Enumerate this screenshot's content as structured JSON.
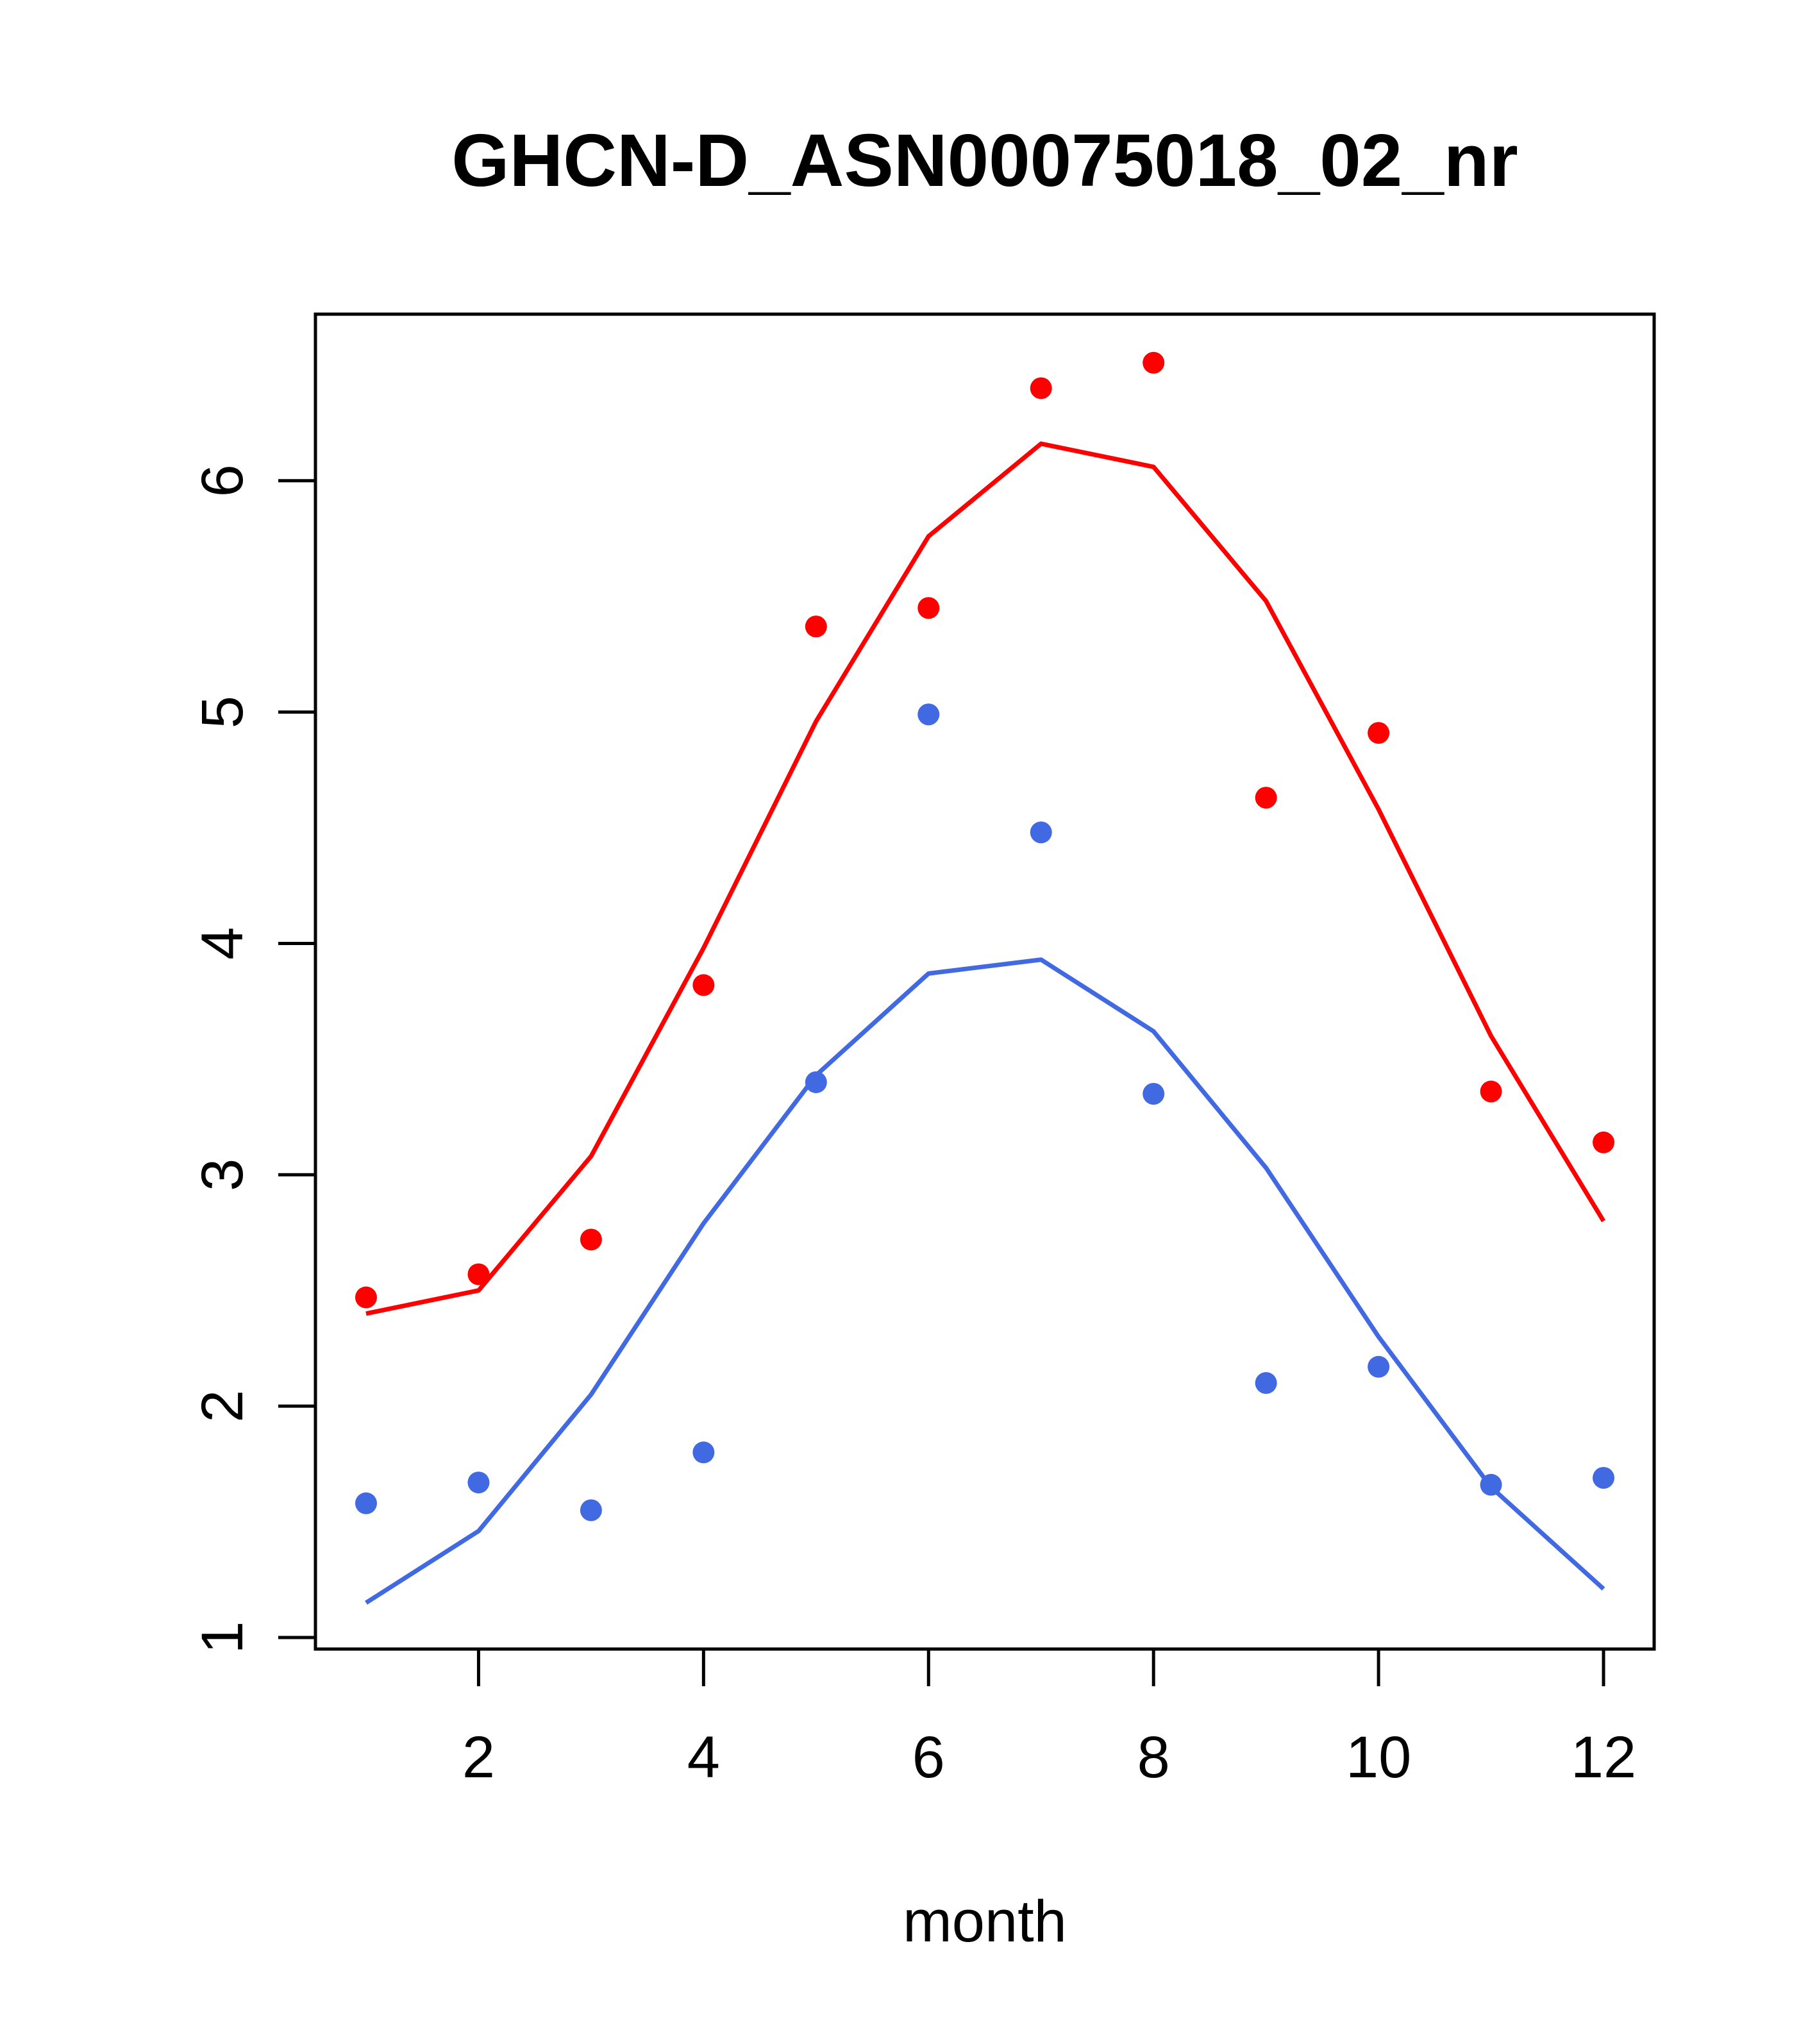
{
  "chart_data": {
    "type": "scatter",
    "title": "GHCN-D_ASN00075018_02_nr",
    "xlabel": "month",
    "ylabel": "",
    "xlim": [
      0.55,
      12.45
    ],
    "ylim": [
      0.95,
      6.72
    ],
    "x_ticks": [
      2,
      4,
      6,
      8,
      10,
      12
    ],
    "y_ticks": [
      1,
      2,
      3,
      4,
      5,
      6
    ],
    "grid": false,
    "legend": "none",
    "x": [
      1,
      2,
      3,
      4,
      5,
      6,
      7,
      8,
      9,
      10,
      11,
      12
    ],
    "series": [
      {
        "color": "#ff0000",
        "points": [
          2.47,
          2.57,
          2.72,
          3.82,
          5.37,
          5.45,
          6.4,
          6.51,
          4.63,
          4.91,
          3.36,
          3.14
        ],
        "line": [
          2.4,
          2.5,
          3.08,
          3.98,
          4.96,
          5.76,
          6.16,
          6.06,
          5.48,
          4.58,
          3.6,
          2.8
        ]
      },
      {
        "color": "#4169e1",
        "points": [
          1.58,
          1.67,
          1.55,
          1.8,
          3.4,
          4.99,
          4.48,
          3.35,
          2.1,
          2.17,
          1.66,
          1.69
        ],
        "line": [
          1.15,
          1.46,
          2.05,
          2.79,
          3.43,
          3.87,
          3.93,
          3.62,
          3.03,
          2.3,
          1.65,
          1.21
        ]
      }
    ]
  }
}
